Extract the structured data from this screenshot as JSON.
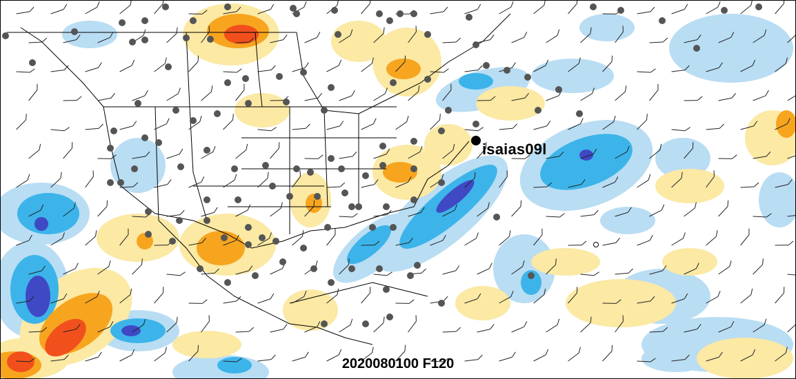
{
  "map": {
    "storm_id": "isaias09l",
    "valid_time": "2020080100 F120",
    "colors": {
      "light_blue": "#b9ddf3",
      "mid_blue": "#3cb4ea",
      "dark_blue": "#3f49c4",
      "light_yellow": "#fbe9a4",
      "orange": "#f7a51f",
      "red_orange": "#f1501d",
      "boundary": "#000000",
      "station_dot": "#555555",
      "storm_marker": "#000000"
    },
    "layers": [
      "shaded-anomaly",
      "coastlines",
      "political-boundaries",
      "wind-barbs",
      "station-dots",
      "storm-position"
    ]
  }
}
